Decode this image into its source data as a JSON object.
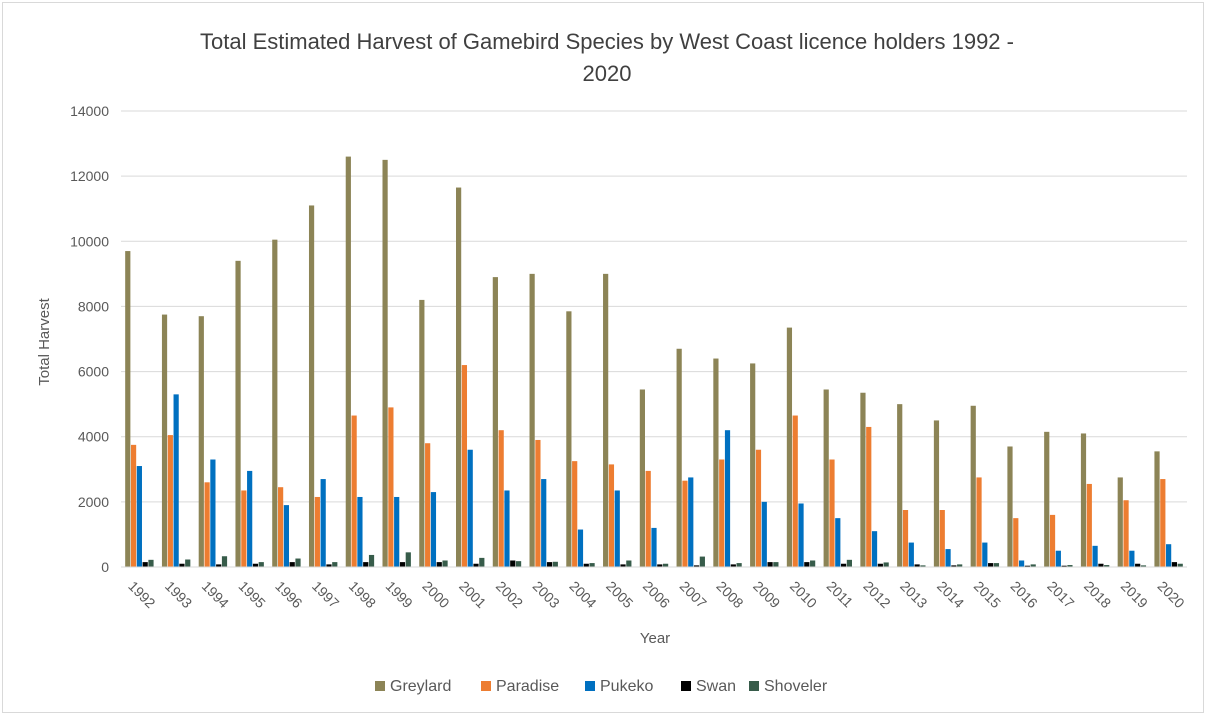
{
  "chart_data": {
    "type": "bar",
    "title_lines": [
      "Total Estimated Harvest of Gamebird Species by West Coast licence holders 1992 -",
      "2020"
    ],
    "xlabel": "Year",
    "ylabel": "Total Harvest",
    "ylim": [
      0,
      14000
    ],
    "yticks": [
      0,
      2000,
      4000,
      6000,
      8000,
      10000,
      12000,
      14000
    ],
    "grid": true,
    "legend_position": "bottom",
    "categories": [
      "1992",
      "1993",
      "1994",
      "1995",
      "1996",
      "1997",
      "1998",
      "1999",
      "2000",
      "2001",
      "2002",
      "2003",
      "2004",
      "2005",
      "2006",
      "2007",
      "2008",
      "2009",
      "2010",
      "2011",
      "2012",
      "2013",
      "2014",
      "2015",
      "2016",
      "2017",
      "2018",
      "2019",
      "2020"
    ],
    "series": [
      {
        "name": "Greylard",
        "color": "#8c8456",
        "values": [
          9700,
          7750,
          7700,
          9400,
          10050,
          11100,
          12600,
          12500,
          8200,
          11650,
          8900,
          9000,
          7850,
          9000,
          5450,
          6700,
          6400,
          6250,
          7350,
          5450,
          5350,
          5000,
          4500,
          4950,
          3700,
          4150,
          4100,
          2750,
          3550
        ]
      },
      {
        "name": "Paradise",
        "color": "#ed7d31",
        "values": [
          3750,
          4050,
          2600,
          2350,
          2450,
          2150,
          4650,
          4900,
          3800,
          6200,
          4200,
          3900,
          3250,
          3150,
          2950,
          2650,
          3300,
          3600,
          4650,
          3300,
          4300,
          1750,
          1750,
          2750,
          1500,
          1600,
          2550,
          2050,
          2700
        ]
      },
      {
        "name": "Pukeko",
        "color": "#0070c0",
        "values": [
          3100,
          5300,
          3300,
          2950,
          1900,
          2700,
          2150,
          2150,
          2300,
          3600,
          2350,
          2700,
          1150,
          2350,
          1200,
          2750,
          4200,
          2000,
          1950,
          1500,
          1100,
          750,
          550,
          750,
          200,
          500,
          650,
          500,
          700
        ]
      },
      {
        "name": "Swan",
        "color": "#000000",
        "values": [
          150,
          100,
          80,
          100,
          150,
          80,
          150,
          150,
          150,
          100,
          200,
          150,
          100,
          80,
          80,
          50,
          80,
          150,
          150,
          100,
          100,
          80,
          50,
          120,
          40,
          40,
          100,
          100,
          150
        ]
      },
      {
        "name": "Shoveler",
        "color": "#375c4a",
        "values": [
          220,
          230,
          330,
          150,
          260,
          150,
          370,
          450,
          200,
          280,
          180,
          160,
          120,
          200,
          100,
          320,
          120,
          150,
          200,
          220,
          140,
          50,
          80,
          120,
          80,
          60,
          60,
          50,
          100
        ]
      }
    ]
  }
}
